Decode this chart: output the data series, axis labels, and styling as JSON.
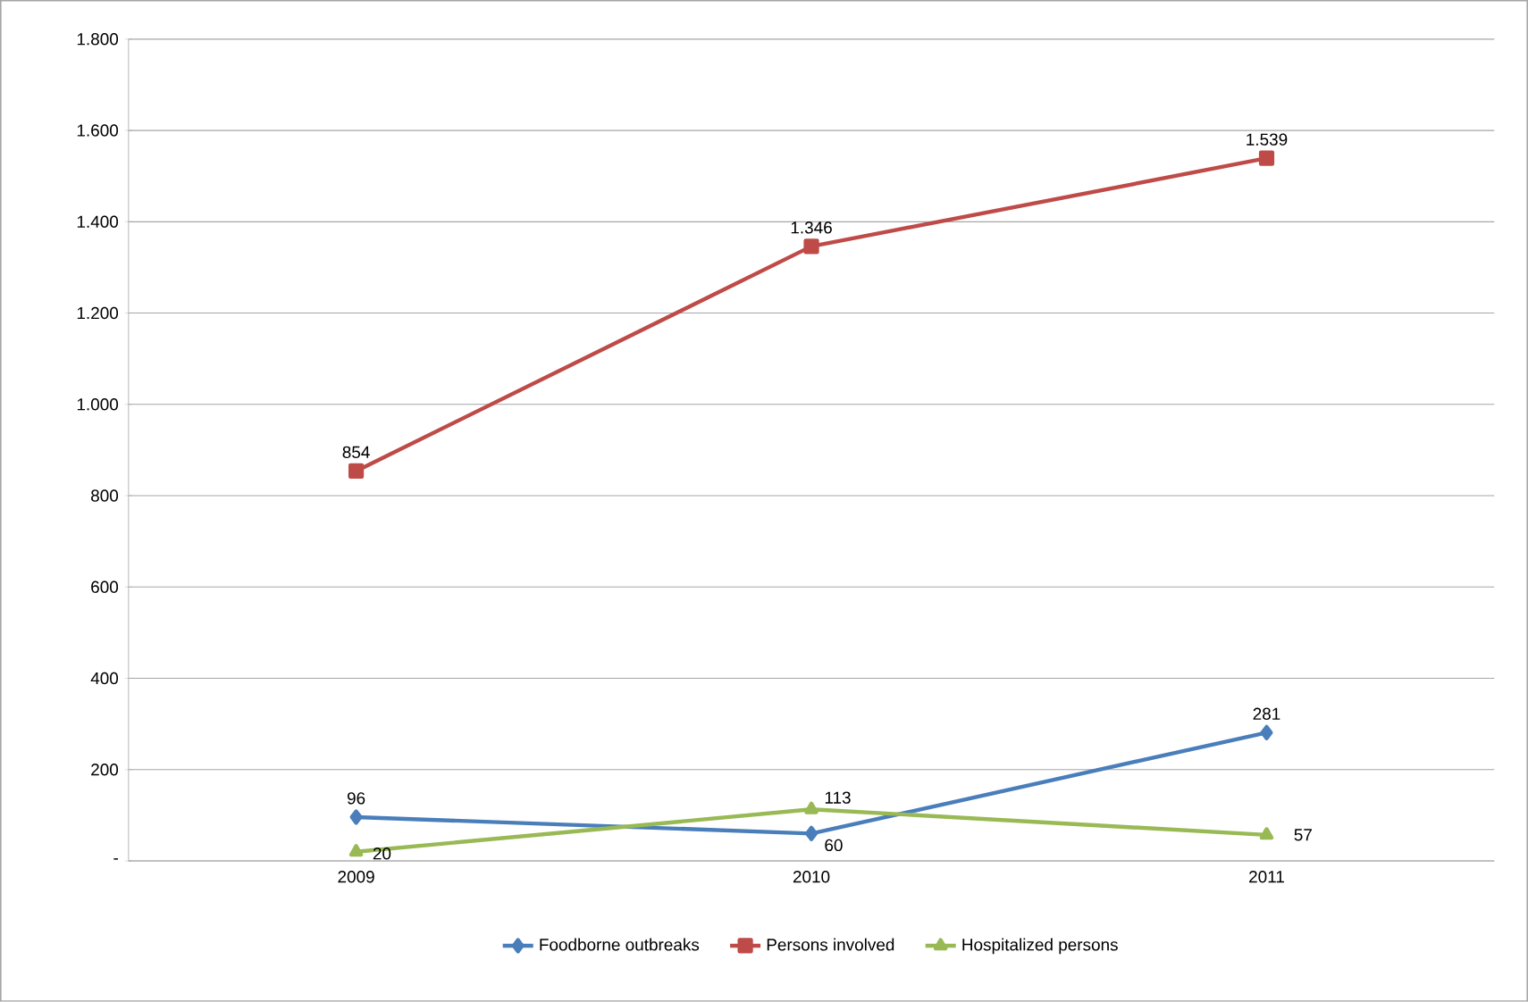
{
  "chart_data": {
    "type": "line",
    "categories": [
      "2009",
      "2010",
      "2011"
    ],
    "series": [
      {
        "name": "Foodborne outbreaks",
        "color": "#4a7ebb",
        "marker": "diamond",
        "values": [
          96,
          60,
          281
        ],
        "value_labels": [
          "96",
          "60",
          "281"
        ]
      },
      {
        "name": "Persons involved",
        "color": "#be4b48",
        "marker": "square",
        "values": [
          854,
          1346,
          1539
        ],
        "value_labels": [
          "854",
          "1.346",
          "1.539"
        ]
      },
      {
        "name": "Hospitalized persons",
        "color": "#98b954",
        "marker": "triangle",
        "values": [
          20,
          113,
          57
        ],
        "value_labels": [
          "20",
          "113",
          "57"
        ]
      }
    ],
    "ylim": [
      0,
      1800
    ],
    "yticks": [
      {
        "value": 0,
        "label": "-"
      },
      200,
      400,
      600,
      800,
      {
        "value": 1000,
        "label": "1.000"
      },
      {
        "value": 1200,
        "label": "1.200"
      },
      {
        "value": 1400,
        "label": "1.400"
      },
      {
        "value": 1600,
        "label": "1.600"
      },
      {
        "value": 1800,
        "label": "1.800"
      }
    ],
    "grid": "y",
    "legend": "bottom",
    "line_style": "solid"
  }
}
